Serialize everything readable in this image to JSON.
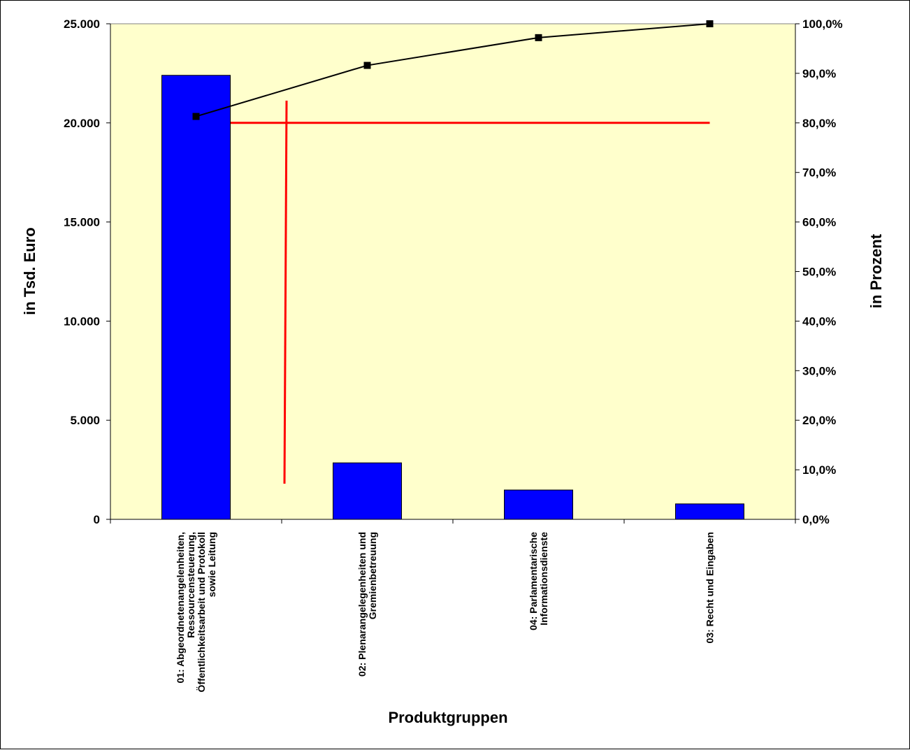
{
  "chart_data": {
    "type": "bar",
    "xlabel": "Produktgruppen",
    "ylabel": "in Tsd. Euro",
    "y2label": "in Prozent",
    "ylim": [
      0,
      25000
    ],
    "y2lim": [
      0,
      100
    ],
    "yticks": [
      "0",
      "5.000",
      "10.000",
      "15.000",
      "20.000",
      "25.000"
    ],
    "y2ticks": [
      "0,0%",
      "10,0%",
      "20,0%",
      "30,0%",
      "40,0%",
      "50,0%",
      "60,0%",
      "70,0%",
      "80,0%",
      "90,0%",
      "100,0%"
    ],
    "categories": [
      [
        "01: Abgeordnetenangelenheiten,",
        "Ressourcensteuerung,",
        "Öffentlichkeitsarbeit und Protokoll",
        "sowie Leitung"
      ],
      [
        "02: Plenarangelegenheiten und",
        "Gremienbetreuung"
      ],
      [
        "04: Parlamentarische",
        "Informationsdienste"
      ],
      [
        "03: Recht und Eingaben"
      ]
    ],
    "series": [
      {
        "type": "bar",
        "axis": "left",
        "values": [
          22400,
          2850,
          1480,
          780
        ]
      },
      {
        "type": "line",
        "axis": "right",
        "values": [
          81.3,
          91.6,
          97.2,
          100.0
        ]
      }
    ],
    "reference_line_percent": 80,
    "plot_background": "#ffffcc",
    "bar_color": "#0000ff",
    "line_color": "#000000",
    "reference_color": "#ff0000"
  }
}
